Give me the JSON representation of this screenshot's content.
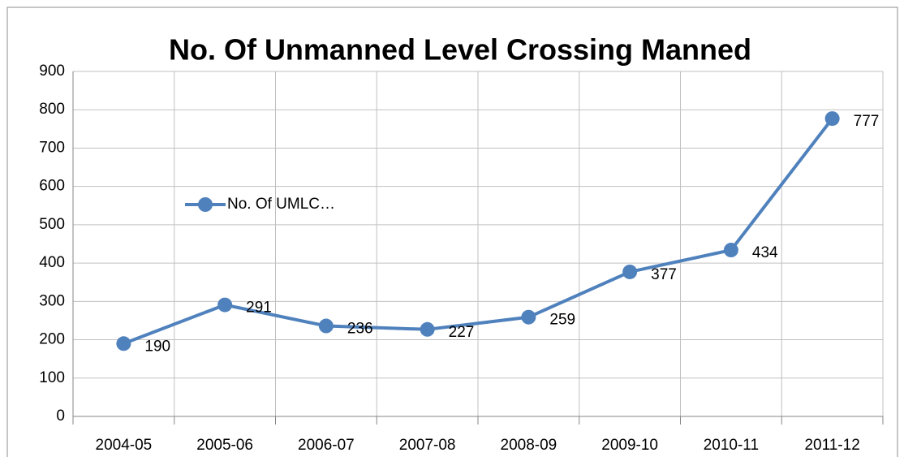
{
  "chart_data": {
    "type": "line",
    "title": "No. Of Unmanned Level Crossing  Manned",
    "categories": [
      "2004-05",
      "2005-06",
      "2006-07",
      "2007-08",
      "2008-09",
      "2009-10",
      "2010-11",
      "2011-12"
    ],
    "series": [
      {
        "name": "No. Of UMLC…",
        "color": "#4f81bd",
        "values": [
          190,
          291,
          236,
          227,
          259,
          377,
          434,
          777
        ]
      }
    ],
    "ylim": [
      0,
      900
    ],
    "yticks": [
      0,
      100,
      200,
      300,
      400,
      500,
      600,
      700,
      800,
      900
    ],
    "grid": true,
    "data_labels": true
  }
}
